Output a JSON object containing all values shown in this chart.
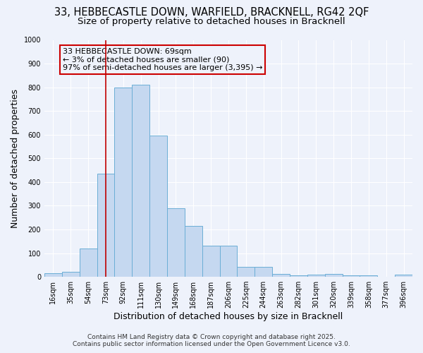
{
  "title_line1": "33, HEBBECASTLE DOWN, WARFIELD, BRACKNELL, RG42 2QF",
  "title_line2": "Size of property relative to detached houses in Bracknell",
  "xlabel": "Distribution of detached houses by size in Bracknell",
  "ylabel": "Number of detached properties",
  "categories": [
    "16sqm",
    "35sqm",
    "54sqm",
    "73sqm",
    "92sqm",
    "111sqm",
    "130sqm",
    "149sqm",
    "168sqm",
    "187sqm",
    "206sqm",
    "225sqm",
    "244sqm",
    "263sqm",
    "282sqm",
    "301sqm",
    "320sqm",
    "339sqm",
    "358sqm",
    "377sqm",
    "396sqm"
  ],
  "values": [
    15,
    20,
    120,
    435,
    800,
    810,
    595,
    290,
    215,
    130,
    130,
    43,
    43,
    13,
    5,
    8,
    12,
    5,
    5,
    0,
    8
  ],
  "bar_color": "#c5d8f0",
  "bar_edge_color": "#6baed6",
  "vline_x_index": 3,
  "vline_color": "#c00000",
  "annotation_text": "33 HEBBECASTLE DOWN: 69sqm\n← 3% of detached houses are smaller (90)\n97% of semi-detached houses are larger (3,395) →",
  "annotation_box_color": "#cc0000",
  "ylim": [
    0,
    1000
  ],
  "yticks": [
    0,
    100,
    200,
    300,
    400,
    500,
    600,
    700,
    800,
    900,
    1000
  ],
  "footer_line1": "Contains HM Land Registry data © Crown copyright and database right 2025.",
  "footer_line2": "Contains public sector information licensed under the Open Government Licence v3.0.",
  "background_color": "#eef2fb",
  "grid_color": "#ffffff",
  "title_fontsize": 10.5,
  "subtitle_fontsize": 9.5,
  "axis_label_fontsize": 9,
  "tick_fontsize": 7,
  "footer_fontsize": 6.5,
  "ann_fontsize": 8
}
